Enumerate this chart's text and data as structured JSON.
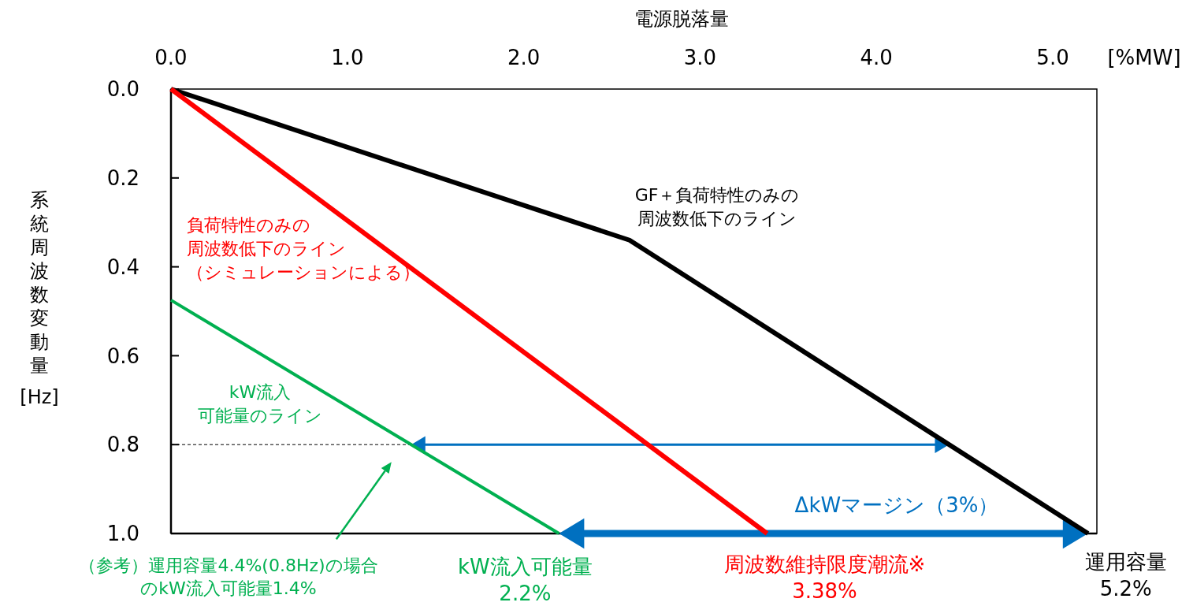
{
  "chart_data": {
    "type": "line",
    "xlabel": "電源脱落量",
    "ylabel": "系統周波数変動量[Hz]",
    "xlim": [
      0,
      5.25
    ],
    "xticks": [
      {
        "value": 0,
        "label": "0.0"
      },
      {
        "value": 1,
        "label": "1.0"
      },
      {
        "value": 2,
        "label": "2.0"
      },
      {
        "value": 3,
        "label": "3.0"
      },
      {
        "value": 4,
        "label": "4.0"
      },
      {
        "value": 5,
        "label": "5.0"
      }
    ],
    "ylim": [
      1.0,
      0.0
    ],
    "yticks": [
      {
        "value": 0,
        "label": "0.0"
      },
      {
        "value": 0.2,
        "label": "0.2"
      },
      {
        "value": 0.4,
        "label": "0.4"
      },
      {
        "value": 0.6,
        "label": "0.6"
      },
      {
        "value": 0.8,
        "label": "0.8"
      },
      {
        "value": 1.0,
        "label": "1.0"
      }
    ],
    "grid": false,
    "line_style": "solid",
    "ref_lines": [
      {
        "axis": "y",
        "value": 0.8,
        "color": "#000000",
        "line_style": "dashed"
      }
    ],
    "series": [
      {
        "name": "GF＋負荷特性のみの周波数低下のライン",
        "color": "#000000",
        "x": [
          0,
          2.6,
          5.2
        ],
        "values": [
          0,
          0.34,
          1.0
        ]
      },
      {
        "name": "負荷特性のみの周波数低下のライン（シミュレーションによる）",
        "color": "#ff0000",
        "x": [
          0,
          3.38
        ],
        "values": [
          0,
          1.0
        ]
      },
      {
        "name": "kW流入可能量のライン",
        "color": "#00b050",
        "x": [
          0,
          2.2
        ],
        "values": [
          0.475,
          1.0
        ]
      }
    ],
    "annotations": [
      "[%MW]",
      "（参考）運用容量4.4%(0.8Hz)の場合のkW流入可能量1.4%",
      {
        "text": "kW流入可能量2.2%",
        "x": 2.2,
        "y": 1.0
      },
      {
        "text": "周波数維持限度潮流※3.38%",
        "x": 3.38,
        "y": 1.0
      },
      {
        "text": "運用容量5.2%",
        "x": 5.2,
        "y": 1.0
      },
      "ΔkWマージン（3%）"
    ]
  }
}
